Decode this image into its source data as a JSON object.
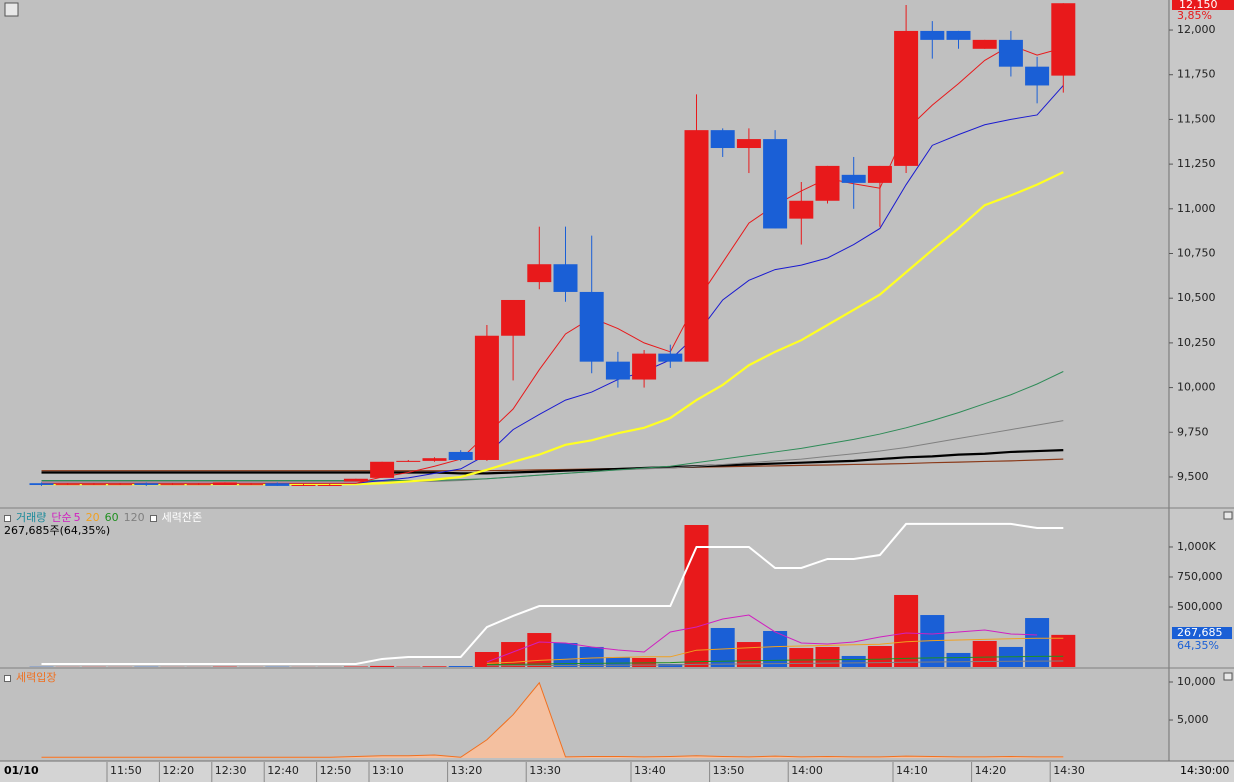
{
  "chart_data": [
    {
      "type": "candlestick",
      "categories": [
        null,
        null,
        null,
        "11:50",
        null,
        "12:20",
        null,
        "12:30",
        null,
        "12:40",
        null,
        "12:50",
        null,
        "13:10",
        null,
        null,
        "13:20",
        null,
        null,
        "13:30",
        null,
        null,
        null,
        "13:40",
        null,
        null,
        "13:50",
        null,
        null,
        "14:00",
        null,
        null,
        null,
        "14:10",
        null,
        null,
        "14:20",
        null,
        null,
        "14:30"
      ],
      "date_label": "01/10",
      "time_label": "14:30:00",
      "open": [
        9465,
        9460,
        9460,
        9460,
        9465,
        9460,
        9460,
        9455,
        9460,
        9465,
        9455,
        9455,
        9475,
        9495,
        9590,
        9590,
        9640,
        9595,
        10290,
        10590,
        10690,
        10535,
        10145,
        10045,
        10190,
        10145,
        11440,
        11340,
        11390,
        10945,
        11045,
        11190,
        11145,
        11240,
        11995,
        11995,
        11895,
        11945,
        11795,
        11745
      ],
      "high": [
        9470,
        9465,
        9465,
        9465,
        9470,
        9465,
        9465,
        9470,
        9465,
        9470,
        9460,
        9460,
        9490,
        9585,
        9595,
        9610,
        9650,
        10350,
        10490,
        10900,
        10900,
        10850,
        10200,
        10210,
        10240,
        11640,
        11450,
        11450,
        11440,
        11150,
        11240,
        11290,
        11240,
        12140,
        12050,
        11995,
        11945,
        11995,
        11850,
        12150
      ],
      "low": [
        9450,
        9455,
        9455,
        9455,
        9450,
        9455,
        9455,
        9455,
        9455,
        9450,
        9450,
        9450,
        9475,
        9495,
        9585,
        9585,
        9590,
        9590,
        10040,
        10550,
        10480,
        10080,
        10000,
        10000,
        10110,
        10145,
        11290,
        11200,
        10890,
        10800,
        11030,
        11000,
        10900,
        11200,
        11840,
        11895,
        11895,
        11740,
        11590,
        11650
      ],
      "close": [
        9455,
        9460,
        9460,
        9460,
        9455,
        9460,
        9460,
        9470,
        9460,
        9450,
        9455,
        9455,
        9490,
        9585,
        9590,
        9605,
        9595,
        10290,
        10490,
        10690,
        10535,
        10145,
        10045,
        10190,
        10145,
        11440,
        11340,
        11390,
        10890,
        11045,
        11240,
        11145,
        11240,
        11995,
        11945,
        11945,
        11945,
        11795,
        11690,
        12150
      ],
      "up_color": "#e8191b",
      "down_color": "#1a5fd6",
      "lines": [
        {
          "color": "#8a3a1a",
          "width": 1.2,
          "values": [
            9535,
            9535,
            9535,
            9535,
            9535,
            9535,
            9535,
            9535,
            9535,
            9535,
            9535,
            9535,
            9535,
            9535,
            9535,
            9535,
            9535,
            9535,
            9537,
            9540,
            9542,
            9545,
            9547,
            9550,
            9552,
            9555,
            9557,
            9560,
            9562,
            9565,
            9567,
            9570,
            9572,
            9575,
            9580,
            9583,
            9587,
            9590,
            9595,
            9600
          ]
        },
        {
          "color": "#000000",
          "width": 2.2,
          "values": [
            9525,
            9525,
            9525,
            9525,
            9525,
            9525,
            9525,
            9525,
            9525,
            9525,
            9525,
            9525,
            9525,
            9525,
            9525,
            9525,
            9520,
            9520,
            9525,
            9530,
            9535,
            9540,
            9545,
            9550,
            9555,
            9560,
            9565,
            9570,
            9575,
            9580,
            9585,
            9590,
            9600,
            9610,
            9615,
            9625,
            9630,
            9640,
            9645,
            9650
          ]
        },
        {
          "color": "#808080",
          "width": 1,
          "values": [
            9475,
            9475,
            9475,
            9475,
            9475,
            9475,
            9475,
            9475,
            9475,
            9475,
            9475,
            9475,
            9475,
            9475,
            9475,
            9475,
            9480,
            9490,
            9500,
            9510,
            9520,
            9530,
            9540,
            9545,
            9550,
            9560,
            9570,
            9580,
            9590,
            9600,
            9615,
            9630,
            9645,
            9665,
            9690,
            9715,
            9740,
            9765,
            9790,
            9815
          ]
        },
        {
          "color": "#2e8b57",
          "width": 1,
          "values": [
            9480,
            9480,
            9480,
            9480,
            9480,
            9480,
            9480,
            9480,
            9480,
            9480,
            9480,
            9480,
            9480,
            9480,
            9480,
            9480,
            9485,
            9490,
            9500,
            9510,
            9520,
            9530,
            9540,
            9550,
            9560,
            9580,
            9600,
            9620,
            9640,
            9660,
            9685,
            9710,
            9740,
            9775,
            9815,
            9860,
            9910,
            9960,
            10020,
            10090
          ]
        },
        {
          "color": "#ffff22",
          "width": 2.2,
          "values": [
            9460,
            9460,
            9460,
            9460,
            9460,
            9460,
            9460,
            9460,
            9460,
            9460,
            9460,
            9460,
            9460,
            9465,
            9475,
            9485,
            9500,
            9540,
            9585,
            9625,
            9680,
            9705,
            9745,
            9775,
            9830,
            9930,
            10015,
            10125,
            10200,
            10265,
            10350,
            10435,
            10520,
            10645,
            10770,
            10890,
            11020,
            11075,
            11135,
            11205
          ]
        },
        {
          "color": "#1a1ad0",
          "width": 1,
          "values": [
            9465,
            9465,
            9465,
            9465,
            9465,
            9465,
            9465,
            9465,
            9465,
            9465,
            9465,
            9465,
            9465,
            9480,
            9495,
            9520,
            9545,
            9625,
            9765,
            9850,
            9930,
            9975,
            10045,
            10090,
            10155,
            10295,
            10490,
            10600,
            10660,
            10685,
            10725,
            10800,
            10890,
            11135,
            11355,
            11415,
            11470,
            11500,
            11525,
            11690
          ]
        },
        {
          "color": "#e8191b",
          "width": 1,
          "values": [
            9465,
            9465,
            9465,
            9465,
            9465,
            9465,
            9465,
            9465,
            9465,
            9465,
            9465,
            9465,
            9465,
            9500,
            9525,
            9560,
            9600,
            9740,
            9880,
            10100,
            10300,
            10390,
            10330,
            10250,
            10200,
            10480,
            10700,
            10920,
            11020,
            11100,
            11170,
            11140,
            11115,
            11440,
            11580,
            11700,
            11830,
            11915,
            11860,
            11900
          ]
        }
      ],
      "ylim": [
        9332,
        12168
      ],
      "yticks": [
        {
          "value": 9500,
          "label": "9,500"
        },
        {
          "value": 9750,
          "label": "9,750"
        },
        {
          "value": 10000,
          "label": "10,000"
        },
        {
          "value": 10250,
          "label": "10,250"
        },
        {
          "value": 10500,
          "label": "10,500"
        },
        {
          "value": 10750,
          "label": "10,750"
        },
        {
          "value": 11000,
          "label": "11,000"
        },
        {
          "value": 11250,
          "label": "11,250"
        },
        {
          "value": 11500,
          "label": "11,500"
        },
        {
          "value": 11750,
          "label": "11,750"
        },
        {
          "value": 12000,
          "label": "12,000"
        }
      ],
      "last_label": "12,150",
      "change_label": "3,85%"
    },
    {
      "type": "bar",
      "volume_name": "거래량",
      "ma_name": "단순",
      "info": "267,685주(64,35%)",
      "values": [
        2000,
        1000,
        1500,
        1000,
        2000,
        1000,
        1000,
        3000,
        1000,
        2000,
        1000,
        1000,
        4000,
        9000,
        3000,
        6000,
        8000,
        125000,
        208000,
        283000,
        200000,
        167000,
        83000,
        75000,
        25000,
        1183000,
        325000,
        208000,
        300000,
        158000,
        167000,
        92000,
        175000,
        600000,
        433000,
        117000,
        217000,
        167000,
        408000,
        267685
      ],
      "value_labels_last": "267,685",
      "ratio_label": "64,35%",
      "series": [
        {
          "name": "5",
          "color": "#d020c0",
          "values": [
            null,
            null,
            null,
            null,
            null,
            null,
            null,
            null,
            null,
            null,
            null,
            null,
            null,
            null,
            null,
            null,
            null,
            42000,
            125000,
            208000,
            200000,
            167000,
            142000,
            125000,
            292000,
            333000,
            400000,
            433000,
            292000,
            200000,
            192000,
            208000,
            250000,
            283000,
            275000,
            292000,
            308000,
            275000,
            267000,
            null
          ]
        },
        {
          "name": "20",
          "color": "#f0a020",
          "values": [
            null,
            null,
            null,
            null,
            null,
            null,
            null,
            null,
            null,
            null,
            null,
            null,
            null,
            null,
            null,
            null,
            null,
            30000,
            40000,
            55000,
            65000,
            75000,
            80000,
            85000,
            85000,
            140000,
            150000,
            160000,
            170000,
            175000,
            180000,
            185000,
            190000,
            210000,
            220000,
            225000,
            230000,
            235000,
            240000,
            240000
          ]
        },
        {
          "name": "60",
          "color": "#209020",
          "values": [
            null,
            null,
            null,
            null,
            null,
            null,
            null,
            null,
            null,
            null,
            null,
            null,
            null,
            null,
            null,
            null,
            null,
            20000,
            22000,
            25000,
            28000,
            30000,
            32000,
            34000,
            36000,
            45000,
            48000,
            52000,
            55000,
            58000,
            60000,
            62000,
            65000,
            72000,
            76000,
            78000,
            82000,
            85000,
            88000,
            90000
          ]
        },
        {
          "name": "120",
          "color": "#808080",
          "values": [
            null,
            null,
            null,
            null,
            null,
            null,
            null,
            null,
            null,
            null,
            null,
            null,
            null,
            null,
            null,
            null,
            null,
            10000,
            11000,
            12000,
            13000,
            14000,
            15000,
            16000,
            17000,
            22000,
            24000,
            26000,
            28000,
            30000,
            32000,
            34000,
            36000,
            40000,
            42000,
            44000,
            46000,
            48000,
            49000,
            50000
          ]
        },
        {
          "name": "세력잔존",
          "color": "#ffffff",
          "values": [
            25000,
            25000,
            25000,
            25000,
            25000,
            25000,
            25000,
            25000,
            25000,
            25000,
            25000,
            25000,
            25000,
            67000,
            83000,
            83000,
            83000,
            333000,
            425000,
            508000,
            508000,
            508000,
            508000,
            508000,
            508000,
            1000000,
            1000000,
            1000000,
            825000,
            825000,
            900000,
            900000,
            933000,
            1192000,
            1192000,
            1192000,
            1192000,
            1192000,
            1158000,
            1158000
          ]
        }
      ],
      "ylim": [
        0,
        1308000
      ],
      "yticks": [
        {
          "value": 500000,
          "label": "500,000"
        },
        {
          "value": 750000,
          "label": "750,000"
        },
        {
          "value": 1000000,
          "label": "1,000K"
        }
      ]
    },
    {
      "type": "area",
      "series": [
        {
          "name": "세력입장",
          "color": "#f07020",
          "fill": "#f4c0a0",
          "values": [
            100,
            100,
            100,
            100,
            100,
            100,
            100,
            100,
            100,
            100,
            100,
            100,
            200,
            300,
            300,
            400,
            100,
            2400,
            5700,
            9900,
            150,
            200,
            200,
            150,
            200,
            300,
            200,
            150,
            250,
            150,
            200,
            150,
            150,
            250,
            200,
            150,
            150,
            200,
            150,
            150
          ]
        }
      ],
      "ylim": [
        -260,
        11580
      ],
      "yticks": [
        {
          "value": 5000,
          "label": "5,000"
        },
        {
          "value": 10000,
          "label": "10,000"
        }
      ]
    }
  ]
}
